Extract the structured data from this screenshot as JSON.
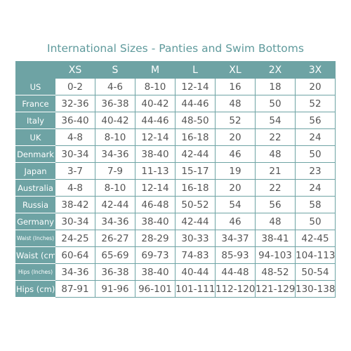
{
  "title": "International Sizes - Panties and Swim Bottoms",
  "table": {
    "columns": [
      "XS",
      "S",
      "M",
      "L",
      "XL",
      "2X",
      "3X"
    ],
    "rows": [
      {
        "label": "US",
        "cells": [
          "0-2",
          "4-6",
          "8-10",
          "12-14",
          "16",
          "18",
          "20"
        ]
      },
      {
        "label": "France",
        "cells": [
          "32-36",
          "36-38",
          "40-42",
          "44-46",
          "48",
          "50",
          "52"
        ]
      },
      {
        "label": "Italy",
        "cells": [
          "36-40",
          "40-42",
          "44-46",
          "48-50",
          "52",
          "54",
          "56"
        ]
      },
      {
        "label": "UK",
        "cells": [
          "4-8",
          "8-10",
          "12-14",
          "16-18",
          "20",
          "22",
          "24"
        ]
      },
      {
        "label": "Denmark",
        "cells": [
          "30-34",
          "34-36",
          "38-40",
          "42-44",
          "46",
          "48",
          "50"
        ]
      },
      {
        "label": "Japan",
        "cells": [
          "3-7",
          "7-9",
          "11-13",
          "15-17",
          "19",
          "21",
          "23"
        ]
      },
      {
        "label": "Australia",
        "cells": [
          "4-8",
          "8-10",
          "12-14",
          "16-18",
          "20",
          "22",
          "24"
        ]
      },
      {
        "label": "Russia",
        "cells": [
          "38-42",
          "42-44",
          "46-48",
          "50-52",
          "54",
          "56",
          "58"
        ]
      },
      {
        "label": "Germany",
        "cells": [
          "30-34",
          "34-36",
          "38-40",
          "42-44",
          "46",
          "48",
          "50"
        ]
      },
      {
        "label": "Waist (Inches)",
        "cells": [
          "24-25",
          "26-27",
          "28-29",
          "30-33",
          "34-37",
          "38-41",
          "42-45"
        ]
      },
      {
        "label": "Waist (cm)",
        "cells": [
          "60-64",
          "65-69",
          "69-73",
          "74-83",
          "85-93",
          "94-103",
          "104-113"
        ]
      },
      {
        "label": "Hips (Inches)",
        "cells": [
          "34-36",
          "36-38",
          "38-40",
          "40-44",
          "44-48",
          "48-52",
          "50-54"
        ]
      },
      {
        "label": "Hips (cm)",
        "cells": [
          "87-91",
          "91-96",
          "96-101",
          "101-111",
          "112-120",
          "121-129",
          "130-138"
        ]
      }
    ]
  }
}
